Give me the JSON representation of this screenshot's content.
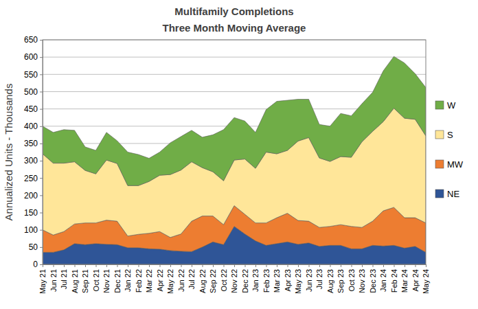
{
  "chart_data": {
    "type": "area",
    "title": "Multifamily Completions",
    "subtitle": "Three Month Moving Average",
    "y_label": "Annualized Units - Thousands",
    "stacked": true,
    "grid": true,
    "legend": "right",
    "categories": [
      "May 21",
      "Jun 21",
      "Jul 21",
      "Aug 21",
      "Sep 21",
      "Oct 21",
      "Nov 21",
      "Dec 21",
      "Jan 22",
      "Feb 22",
      "Mar 22",
      "Apr 22",
      "May 22",
      "Jun 22",
      "Jul 22",
      "Aug 22",
      "Sep 22",
      "Oct 22",
      "Nov 22",
      "Dec 22",
      "Jan 23",
      "Feb 23",
      "Mar 23",
      "Apr 23",
      "May 23",
      "Jun 23",
      "Jul 23",
      "Aug 23",
      "Sep 23",
      "Oct 23",
      "Nov 23",
      "Dec 23",
      "Jan 24",
      "Feb 24",
      "Mar 24",
      "Apr 24",
      "May 24"
    ],
    "series": [
      {
        "name": "NE",
        "color": "#2f5597",
        "values": [
          35,
          35,
          42,
          60,
          57,
          60,
          58,
          57,
          48,
          48,
          45,
          44,
          40,
          38,
          37,
          50,
          65,
          57,
          110,
          88,
          68,
          55,
          60,
          65,
          58,
          62,
          52,
          55,
          55,
          45,
          45,
          55,
          53,
          55,
          47,
          52,
          35
        ]
      },
      {
        "name": "MW",
        "color": "#ed7d31",
        "values": [
          65,
          50,
          53,
          57,
          63,
          60,
          70,
          68,
          34,
          39,
          45,
          51,
          38,
          50,
          88,
          90,
          75,
          58,
          60,
          57,
          52,
          65,
          75,
          83,
          69,
          63,
          55,
          55,
          60,
          65,
          62,
          70,
          102,
          110,
          88,
          83,
          85
        ]
      },
      {
        "name": "S",
        "color": "#ffe699",
        "values": [
          220,
          208,
          198,
          180,
          152,
          142,
          174,
          167,
          146,
          141,
          150,
          163,
          182,
          185,
          172,
          140,
          128,
          127,
          132,
          160,
          158,
          205,
          185,
          182,
          230,
          242,
          201,
          188,
          197,
          200,
          248,
          260,
          258,
          287,
          288,
          285,
          252
        ]
      },
      {
        "name": "W",
        "color": "#70ad47",
        "values": [
          80,
          89,
          97,
          91,
          68,
          68,
          80,
          66,
          97,
          90,
          67,
          67,
          92,
          97,
          91,
          88,
          107,
          148,
          123,
          110,
          104,
          123,
          152,
          145,
          121,
          111,
          97,
          102,
          125,
          120,
          110,
          113,
          147,
          150,
          160,
          132,
          140
        ]
      }
    ],
    "ylim": [
      0,
      650
    ],
    "yticks": [
      0,
      50,
      100,
      150,
      200,
      250,
      300,
      350,
      400,
      450,
      500,
      550,
      600,
      650
    ]
  }
}
